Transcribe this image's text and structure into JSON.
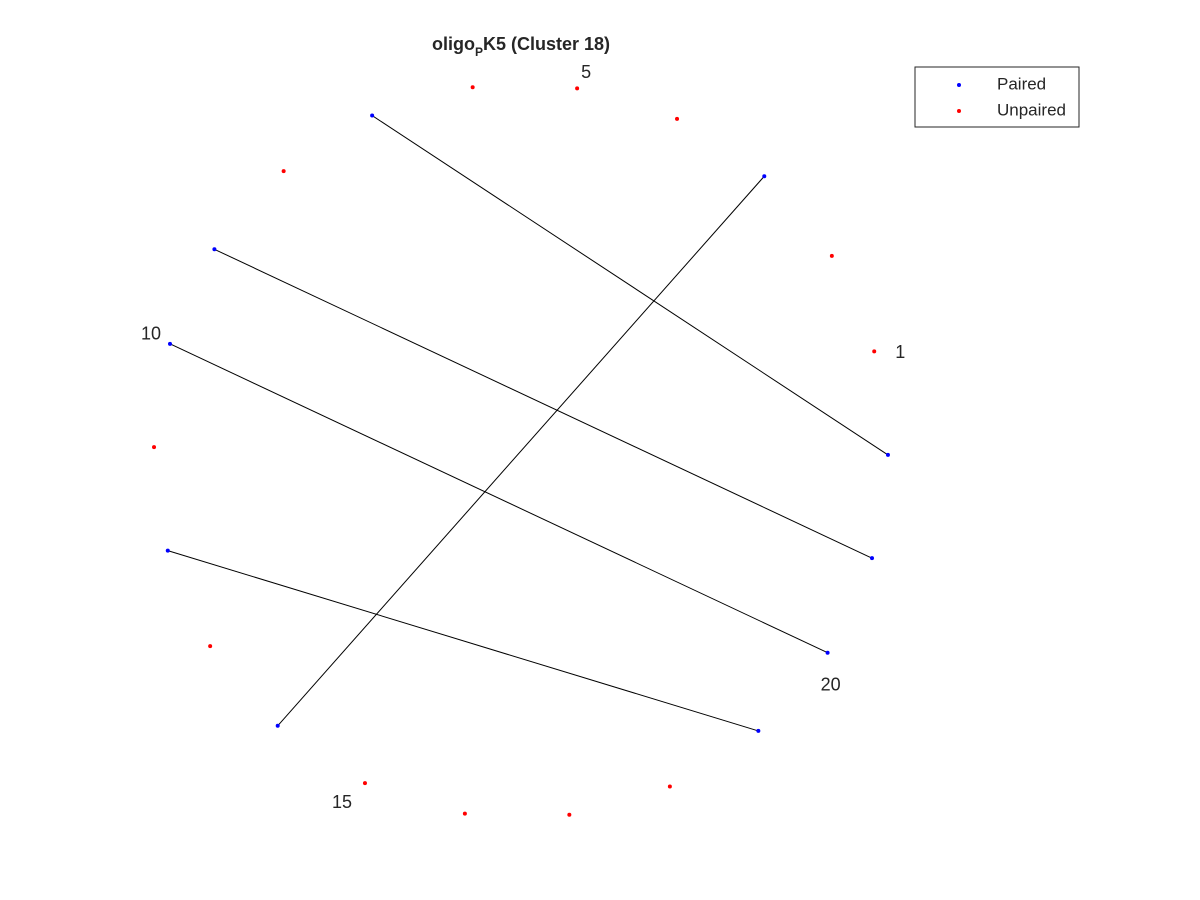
{
  "figure": {
    "title_main": "oligo",
    "title_sub": "P",
    "title_rest": "K5 (Cluster 18)"
  },
  "colors": {
    "paired": "#0000ff",
    "unpaired": "#ff0000",
    "pair_line": "#000000",
    "text": "#262626"
  },
  "legend": {
    "placement": "top-right",
    "items": [
      {
        "label": "Paired",
        "color": "#0000ff"
      },
      {
        "label": "Unpaired",
        "color": "#ff0000"
      }
    ]
  },
  "chart_data": {
    "type": "scatter",
    "nucleotide_count": 22,
    "layout": "circle",
    "labeled_indices": [
      {
        "index": 1,
        "text": "1"
      },
      {
        "index": 5,
        "text": "5"
      },
      {
        "index": 10,
        "text": "10"
      },
      {
        "index": 15,
        "text": "15"
      },
      {
        "index": 20,
        "text": "20"
      }
    ],
    "paired_indices": [
      7,
      9,
      10,
      12,
      14,
      19,
      20,
      21,
      22,
      3
    ],
    "pairs": [
      [
        7,
        22
      ],
      [
        9,
        21
      ],
      [
        10,
        20
      ],
      [
        12,
        19
      ],
      [
        14,
        3
      ]
    ]
  }
}
